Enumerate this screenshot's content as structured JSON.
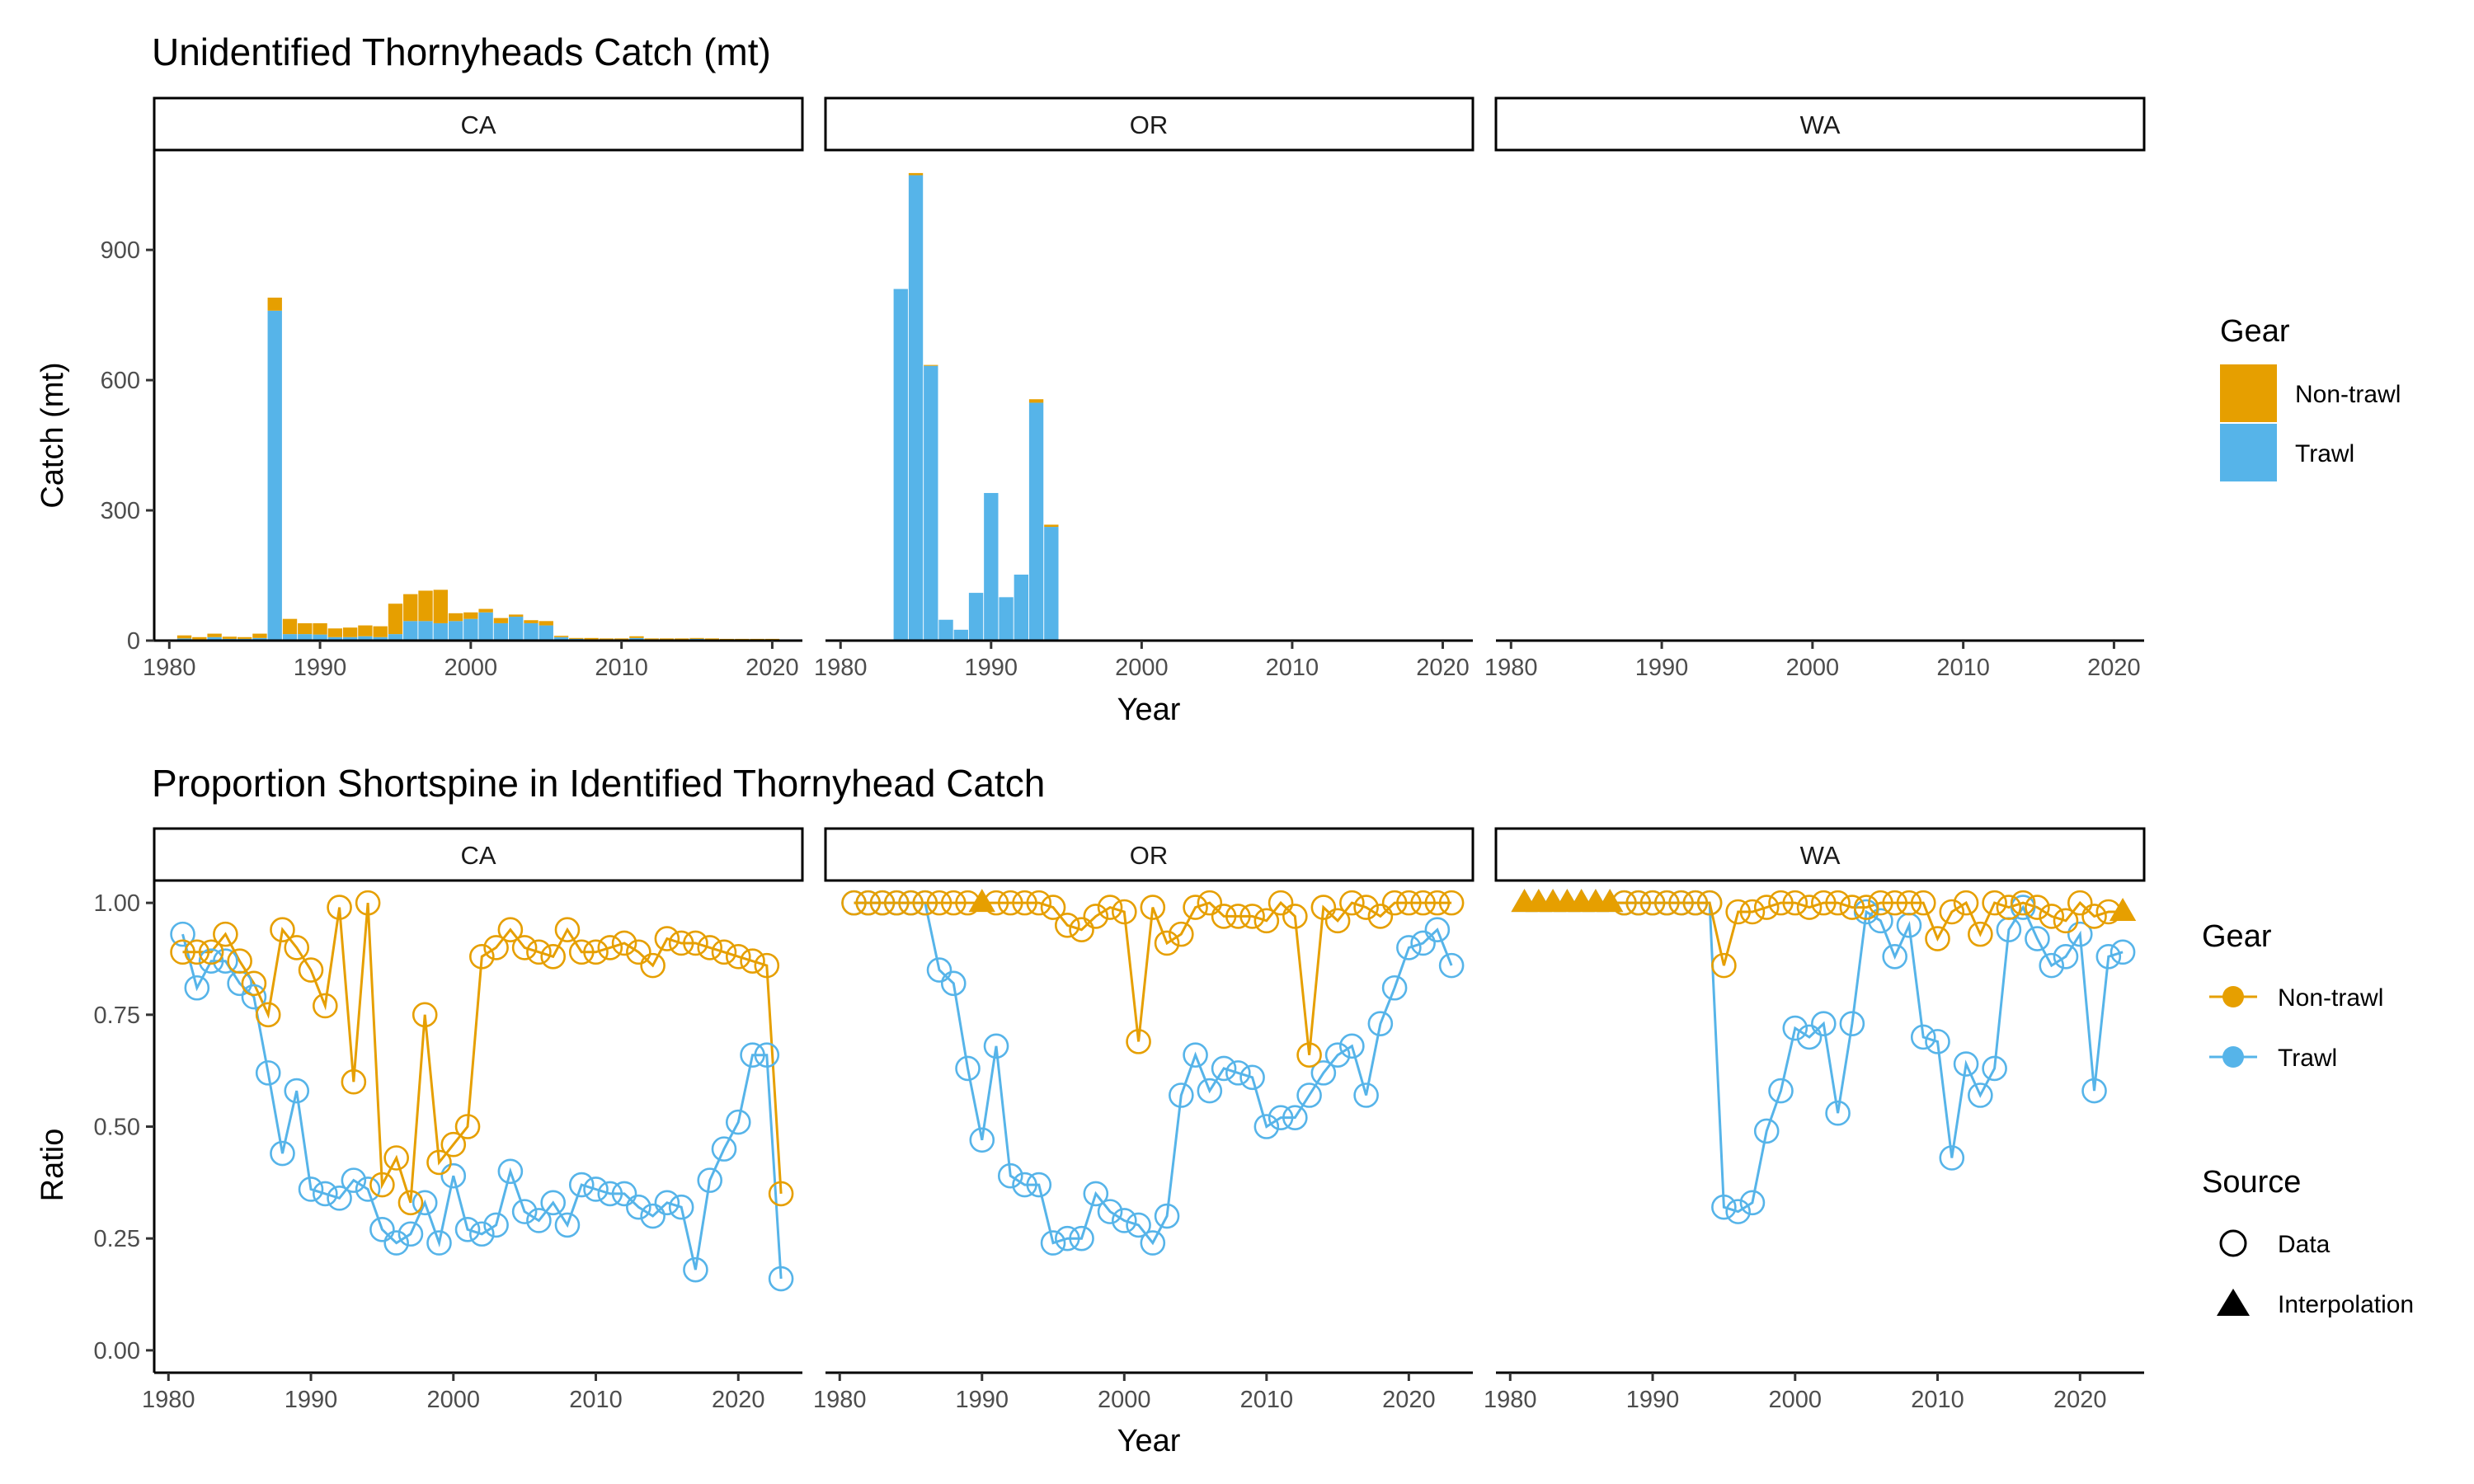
{
  "colors": {
    "nontrawl": "#E69F00",
    "trawl": "#56B4E9",
    "axis": "#000000",
    "tick_text": "#4d4d4d"
  },
  "x_axis_title": "Year",
  "legend": {
    "catch_title": "Gear",
    "catch_items": [
      "Non-trawl",
      "Trawl"
    ],
    "ratio_gear_title": "Gear",
    "ratio_gear_items": [
      "Non-trawl",
      "Trawl"
    ],
    "source_title": "Source",
    "source_items": [
      "Data",
      "Interpolation"
    ]
  },
  "chart_data": [
    {
      "type": "bar",
      "stacked": true,
      "title": "Unidentified Thornyheads Catch (mt)",
      "xlabel": "Year",
      "ylabel": "Catch (mt)",
      "xlim": [
        1979,
        2022
      ],
      "ylim": [
        0,
        1130
      ],
      "x_ticks": [
        1980,
        1990,
        2000,
        2010,
        2020
      ],
      "y_ticks": [
        0,
        300,
        600,
        900
      ],
      "facets": [
        "CA",
        "OR",
        "WA"
      ],
      "stack_order": [
        "Trawl",
        "Non-trawl"
      ],
      "panels": [
        {
          "facet": "CA",
          "years": [
            1981,
            1982,
            1983,
            1984,
            1985,
            1986,
            1987,
            1988,
            1989,
            1990,
            1991,
            1992,
            1993,
            1994,
            1995,
            1996,
            1997,
            1998,
            1999,
            2000,
            2001,
            2002,
            2003,
            2004,
            2005,
            2006,
            2007,
            2008,
            2009,
            2010,
            2011,
            2012,
            2013,
            2014,
            2015,
            2016,
            2017,
            2018,
            2019,
            2020
          ],
          "series": [
            {
              "name": "Trawl",
              "values": [
                5,
                3,
                8,
                4,
                4,
                6,
                760,
                15,
                15,
                14,
                8,
                8,
                10,
                8,
                15,
                45,
                45,
                40,
                45,
                50,
                65,
                40,
                55,
                40,
                35,
                8,
                4,
                3,
                3,
                3,
                6,
                3,
                2,
                2,
                4,
                2,
                2,
                2,
                2,
                2
              ]
            },
            {
              "name": "Non-trawl",
              "values": [
                7,
                5,
                8,
                5,
                4,
                10,
                30,
                35,
                25,
                26,
                20,
                22,
                25,
                25,
                70,
                62,
                70,
                77,
                18,
                15,
                8,
                12,
                5,
                7,
                10,
                3,
                2,
                3,
                2,
                2,
                4,
                2,
                3,
                3,
                2,
                3,
                2,
                2,
                2,
                2
              ]
            }
          ]
        },
        {
          "facet": "OR",
          "years": [
            1984,
            1985,
            1986,
            1987,
            1988,
            1989,
            1990,
            1991,
            1992,
            1993,
            1994,
            2009
          ],
          "series": [
            {
              "name": "Trawl",
              "values": [
                810,
                1072,
                633,
                48,
                25,
                110,
                340,
                100,
                152,
                548,
                262,
                2
              ]
            },
            {
              "name": "Non-trawl",
              "values": [
                0,
                5,
                2,
                0,
                0,
                0,
                0,
                0,
                0,
                8,
                5,
                0
              ]
            }
          ]
        },
        {
          "facet": "WA",
          "years": [],
          "series": [
            {
              "name": "Trawl",
              "values": []
            },
            {
              "name": "Non-trawl",
              "values": []
            }
          ]
        }
      ]
    },
    {
      "type": "line",
      "title": "Proportion Shortspine in Identified Thornyhead Catch",
      "xlabel": "Year",
      "ylabel": "Ratio",
      "xlim": [
        1979,
        2024.5
      ],
      "ylim": [
        -0.05,
        1.05
      ],
      "x_ticks": [
        1980,
        1990,
        2000,
        2010,
        2020
      ],
      "y_ticks": [
        0.0,
        0.25,
        0.5,
        0.75,
        1.0
      ],
      "y_tick_labels": [
        "0.00",
        "0.25",
        "0.50",
        "0.75",
        "1.00"
      ],
      "facets": [
        "CA",
        "OR",
        "WA"
      ],
      "years": [
        1981,
        1982,
        1983,
        1984,
        1985,
        1986,
        1987,
        1988,
        1989,
        1990,
        1991,
        1992,
        1993,
        1994,
        1995,
        1996,
        1997,
        1998,
        1999,
        2000,
        2001,
        2002,
        2003,
        2004,
        2005,
        2006,
        2007,
        2008,
        2009,
        2010,
        2011,
        2012,
        2013,
        2014,
        2015,
        2016,
        2017,
        2018,
        2019,
        2020,
        2021,
        2022,
        2023
      ],
      "panels": [
        {
          "facet": "CA",
          "series": [
            {
              "name": "Non-trawl",
              "values": [
                0.89,
                0.89,
                0.89,
                0.93,
                0.87,
                0.82,
                0.75,
                0.94,
                0.9,
                0.85,
                0.77,
                0.99,
                0.6,
                1.0,
                0.37,
                0.43,
                0.33,
                0.75,
                0.42,
                0.46,
                0.5,
                0.88,
                0.9,
                0.94,
                0.9,
                0.89,
                0.88,
                0.94,
                0.89,
                0.89,
                0.9,
                0.91,
                0.89,
                0.86,
                0.92,
                0.91,
                0.91,
                0.9,
                0.89,
                0.88,
                0.87,
                0.86,
                0.35
              ],
              "source": [
                "Data",
                "Data",
                "Data",
                "Data",
                "Data",
                "Data",
                "Data",
                "Data",
                "Data",
                "Data",
                "Data",
                "Data",
                "Data",
                "Data",
                "Data",
                "Data",
                "Data",
                "Data",
                "Data",
                "Data",
                "Data",
                "Data",
                "Data",
                "Data",
                "Data",
                "Data",
                "Data",
                "Data",
                "Data",
                "Data",
                "Data",
                "Data",
                "Data",
                "Data",
                "Data",
                "Data",
                "Data",
                "Data",
                "Data",
                "Data",
                "Data",
                "Data",
                "Data"
              ]
            },
            {
              "name": "Trawl",
              "values": [
                0.93,
                0.81,
                0.87,
                0.87,
                0.82,
                0.79,
                0.62,
                0.44,
                0.58,
                0.36,
                0.35,
                0.34,
                0.38,
                0.36,
                0.27,
                0.24,
                0.26,
                0.33,
                0.24,
                0.39,
                0.27,
                0.26,
                0.28,
                0.4,
                0.31,
                0.29,
                0.33,
                0.28,
                0.37,
                0.36,
                0.35,
                0.35,
                0.32,
                0.3,
                0.33,
                0.32,
                0.18,
                0.38,
                0.45,
                0.51,
                0.66,
                0.66,
                0.16
              ],
              "source": [
                "Data",
                "Data",
                "Data",
                "Data",
                "Data",
                "Data",
                "Data",
                "Data",
                "Data",
                "Data",
                "Data",
                "Data",
                "Data",
                "Data",
                "Data",
                "Data",
                "Data",
                "Data",
                "Data",
                "Data",
                "Data",
                "Data",
                "Data",
                "Data",
                "Data",
                "Data",
                "Data",
                "Data",
                "Data",
                "Data",
                "Data",
                "Data",
                "Data",
                "Data",
                "Data",
                "Data",
                "Data",
                "Data",
                "Data",
                "Data",
                "Data",
                "Data",
                "Data"
              ]
            }
          ]
        },
        {
          "facet": "OR",
          "series": [
            {
              "name": "Non-trawl",
              "values": [
                1.0,
                1.0,
                1.0,
                1.0,
                1.0,
                1.0,
                1.0,
                1.0,
                1.0,
                1.0,
                1.0,
                1.0,
                1.0,
                1.0,
                0.99,
                0.95,
                0.94,
                0.97,
                0.99,
                0.98,
                0.69,
                0.99,
                0.91,
                0.93,
                0.99,
                1.0,
                0.97,
                0.97,
                0.97,
                0.96,
                1.0,
                0.97,
                0.66,
                0.99,
                0.96,
                1.0,
                0.99,
                0.97,
                1.0,
                1.0,
                1.0,
                1.0,
                1.0
              ],
              "source": [
                "Data",
                "Data",
                "Data",
                "Data",
                "Data",
                "Data",
                "Data",
                "Data",
                "Data",
                "Interpolation",
                "Data",
                "Data",
                "Data",
                "Data",
                "Data",
                "Data",
                "Data",
                "Data",
                "Data",
                "Data",
                "Data",
                "Data",
                "Data",
                "Data",
                "Data",
                "Data",
                "Data",
                "Data",
                "Data",
                "Data",
                "Data",
                "Data",
                "Data",
                "Data",
                "Data",
                "Data",
                "Data",
                "Data",
                "Data",
                "Data",
                "Data",
                "Data",
                "Data"
              ]
            },
            {
              "name": "Trawl",
              "values": [
                1.0,
                1.0,
                1.0,
                1.0,
                1.0,
                1.0,
                0.85,
                0.82,
                0.63,
                0.47,
                0.68,
                0.39,
                0.37,
                0.37,
                0.24,
                0.25,
                0.25,
                0.35,
                0.31,
                0.29,
                0.28,
                0.24,
                0.3,
                0.57,
                0.66,
                0.58,
                0.63,
                0.62,
                0.61,
                0.5,
                0.52,
                0.52,
                0.57,
                0.62,
                0.66,
                0.68,
                0.57,
                0.73,
                0.81,
                0.9,
                0.91,
                0.94,
                0.86
              ],
              "source": [
                "Data",
                "Data",
                "Data",
                "Data",
                "Data",
                "Data",
                "Data",
                "Data",
                "Data",
                "Data",
                "Data",
                "Data",
                "Data",
                "Data",
                "Data",
                "Data",
                "Data",
                "Data",
                "Data",
                "Data",
                "Data",
                "Data",
                "Data",
                "Data",
                "Data",
                "Data",
                "Data",
                "Data",
                "Data",
                "Data",
                "Data",
                "Data",
                "Data",
                "Data",
                "Data",
                "Data",
                "Data",
                "Data",
                "Data",
                "Data",
                "Data",
                "Data",
                "Data"
              ]
            }
          ]
        },
        {
          "facet": "WA",
          "series": [
            {
              "name": "Non-trawl",
              "values": [
                1.0,
                1.0,
                1.0,
                1.0,
                1.0,
                1.0,
                1.0,
                1.0,
                1.0,
                1.0,
                1.0,
                1.0,
                1.0,
                1.0,
                0.86,
                0.98,
                0.98,
                0.99,
                1.0,
                1.0,
                0.99,
                1.0,
                1.0,
                0.99,
                0.99,
                1.0,
                1.0,
                1.0,
                1.0,
                0.92,
                0.98,
                1.0,
                0.93,
                1.0,
                0.99,
                1.0,
                0.99,
                0.97,
                0.96,
                1.0,
                0.97,
                0.98,
                0.98
              ],
              "source": [
                "Interpolation",
                "Interpolation",
                "Interpolation",
                "Interpolation",
                "Interpolation",
                "Interpolation",
                "Interpolation",
                "Data",
                "Data",
                "Data",
                "Data",
                "Data",
                "Data",
                "Data",
                "Data",
                "Data",
                "Data",
                "Data",
                "Data",
                "Data",
                "Data",
                "Data",
                "Data",
                "Data",
                "Data",
                "Data",
                "Data",
                "Data",
                "Data",
                "Data",
                "Data",
                "Data",
                "Data",
                "Data",
                "Data",
                "Data",
                "Data",
                "Data",
                "Data",
                "Data",
                "Data",
                "Data",
                "Interpolation"
              ]
            },
            {
              "name": "Trawl",
              "values": [
                1.0,
                1.0,
                1.0,
                1.0,
                1.0,
                1.0,
                1.0,
                1.0,
                1.0,
                1.0,
                1.0,
                1.0,
                1.0,
                1.0,
                0.32,
                0.31,
                0.33,
                0.49,
                0.58,
                0.72,
                0.7,
                0.73,
                0.53,
                0.73,
                0.98,
                0.96,
                0.88,
                0.95,
                0.7,
                0.69,
                0.43,
                0.64,
                0.57,
                0.63,
                0.94,
                0.99,
                0.92,
                0.86,
                0.88,
                0.93,
                0.58,
                0.88,
                0.89
              ],
              "source": [
                "Interpolation",
                "Interpolation",
                "Interpolation",
                "Interpolation",
                "Interpolation",
                "Interpolation",
                "Interpolation",
                "Data",
                "Data",
                "Data",
                "Data",
                "Data",
                "Data",
                "Data",
                "Data",
                "Data",
                "Data",
                "Data",
                "Data",
                "Data",
                "Data",
                "Data",
                "Data",
                "Data",
                "Data",
                "Data",
                "Data",
                "Data",
                "Data",
                "Data",
                "Data",
                "Data",
                "Data",
                "Data",
                "Data",
                "Data",
                "Data",
                "Data",
                "Data",
                "Data",
                "Data",
                "Data",
                "Data"
              ]
            }
          ]
        }
      ]
    }
  ]
}
